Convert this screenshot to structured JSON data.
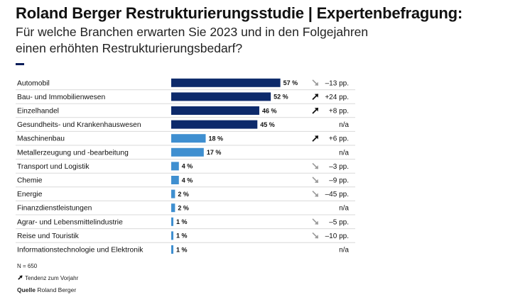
{
  "header": {
    "title": "Roland Berger Restrukturierungsstudie | Expertenbefragung:",
    "subtitle_line1": "Für welche Branchen erwarten Sie 2023 und in den Folgejahren",
    "subtitle_line2": "einen erhöhten Restrukturierungsbedarf?"
  },
  "colors": {
    "dark_bar": "#0d2a6b",
    "light_bar": "#3f8fd0",
    "up_arrow": "#111111",
    "down_arrow": "#9a9a9a",
    "divider": "#d9d9d9"
  },
  "chart_data": {
    "type": "bar",
    "orientation": "horizontal",
    "value_unit": "%",
    "xlim": [
      0,
      60
    ],
    "categories": [
      "Automobil",
      "Bau- und Immobilienwesen",
      "Einzelhandel",
      "Gesundheits- und Krankenhauswesen",
      "Maschinenbau",
      "Metallerzeugung und -bearbeitung",
      "Transport und Logistik",
      "Chemie",
      "Energie",
      "Finanzdienstleistungen",
      "Agrar- und Lebensmittelindustrie",
      "Reise und Touristik",
      "Informationstechnologie und Elektronik"
    ],
    "values": [
      57,
      52,
      46,
      45,
      18,
      17,
      4,
      4,
      2,
      2,
      1,
      1,
      1
    ],
    "value_labels": [
      "57 %",
      "52 %",
      "46 %",
      "45 %",
      "18 %",
      "17 %",
      "4 %",
      "4 %",
      "2 %",
      "2 %",
      "1 %",
      "1 %",
      "1 %"
    ],
    "shade": [
      "dark",
      "dark",
      "dark",
      "dark",
      "light",
      "light",
      "light",
      "light",
      "light",
      "light",
      "light",
      "light",
      "light"
    ],
    "trend": [
      "down",
      "up",
      "up",
      "none",
      "up",
      "none",
      "down",
      "down",
      "down",
      "none",
      "down",
      "down",
      "none"
    ],
    "change_labels": [
      "–13 pp.",
      "+24 pp.",
      "+8 pp.",
      "n/a",
      "+6 pp.",
      "n/a",
      "–3 pp.",
      "–9 pp.",
      "–45 pp.",
      "n/a",
      "–5 pp.",
      "–10 pp.",
      "n/a"
    ]
  },
  "footer": {
    "sample": "N = 650",
    "trend_legend": "Tendenz zum Vorjahr",
    "source_label": "Quelle",
    "source_name": "Roland Berger"
  }
}
